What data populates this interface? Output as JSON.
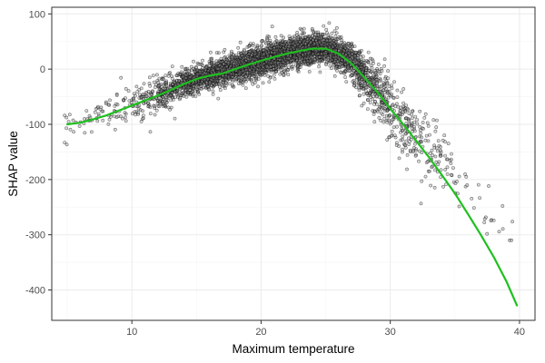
{
  "chart_data": {
    "type": "scatter",
    "title": "",
    "xlabel": "Maximum temperature",
    "ylabel": "SHAP value",
    "xlim": [
      3.8,
      41.2
    ],
    "ylim": [
      -455,
      112
    ],
    "x_ticks": [
      10,
      20,
      30,
      40
    ],
    "y_ticks": [
      100,
      0,
      -100,
      -200,
      -300,
      -400
    ],
    "x_tick_labels": [
      "10",
      "20",
      "30",
      "40"
    ],
    "y_tick_labels": [
      "100",
      "0",
      "-100",
      "-200",
      "-300",
      "-400"
    ],
    "grid": true,
    "legend": "none",
    "colors": {
      "points_stroke": "#000000",
      "points_fill": "#9a9a9a",
      "trend": "#1fbf1f",
      "panel_border": "#333333",
      "grid_major": "#ebebeb",
      "grid_minor": "#f5f5f5",
      "tick_label": "#4d4d4d"
    },
    "series": [
      {
        "type": "scatter",
        "note": "approximately 4000 observations; dense band follows the trend",
        "x_range": [
          4.8,
          39.8
        ],
        "y_range": [
          -310,
          90
        ],
        "band": [
          {
            "x": 5,
            "center": -100,
            "spread": 12,
            "n": 12
          },
          {
            "x": 7,
            "center": -86,
            "spread": 16,
            "n": 25
          },
          {
            "x": 9,
            "center": -70,
            "spread": 18,
            "n": 40
          },
          {
            "x": 11,
            "center": -55,
            "spread": 16,
            "n": 90
          },
          {
            "x": 13,
            "center": -35,
            "spread": 14,
            "n": 220
          },
          {
            "x": 15,
            "center": -18,
            "spread": 12,
            "n": 380
          },
          {
            "x": 17,
            "center": -5,
            "spread": 12,
            "n": 460
          },
          {
            "x": 19,
            "center": 10,
            "spread": 14,
            "n": 520
          },
          {
            "x": 21,
            "center": 22,
            "spread": 15,
            "n": 560
          },
          {
            "x": 23,
            "center": 33,
            "spread": 14,
            "n": 560
          },
          {
            "x": 25,
            "center": 38,
            "spread": 13,
            "n": 520
          },
          {
            "x": 27,
            "center": 15,
            "spread": 16,
            "n": 380
          },
          {
            "x": 29,
            "center": -40,
            "spread": 24,
            "n": 240
          },
          {
            "x": 31,
            "center": -105,
            "spread": 30,
            "n": 130
          },
          {
            "x": 33,
            "center": -150,
            "spread": 32,
            "n": 70
          },
          {
            "x": 35,
            "center": -195,
            "spread": 30,
            "n": 30
          },
          {
            "x": 37,
            "center": -250,
            "spread": 28,
            "n": 12
          },
          {
            "x": 39.5,
            "center": -290,
            "spread": 20,
            "n": 6
          }
        ]
      },
      {
        "type": "line",
        "points": [
          [
            5,
            -100
          ],
          [
            6,
            -97
          ],
          [
            7,
            -91
          ],
          [
            8,
            -84
          ],
          [
            9,
            -75
          ],
          [
            10,
            -66
          ],
          [
            11,
            -57
          ],
          [
            12,
            -48
          ],
          [
            13,
            -38
          ],
          [
            14,
            -27
          ],
          [
            15,
            -18
          ],
          [
            16,
            -12
          ],
          [
            17,
            -8
          ],
          [
            18,
            0
          ],
          [
            19,
            8
          ],
          [
            20,
            15
          ],
          [
            21,
            22
          ],
          [
            22,
            28
          ],
          [
            23,
            33
          ],
          [
            24,
            37
          ],
          [
            25,
            37
          ],
          [
            26,
            28
          ],
          [
            27,
            10
          ],
          [
            28,
            -15
          ],
          [
            29,
            -42
          ],
          [
            30,
            -72
          ],
          [
            31,
            -100
          ],
          [
            32,
            -130
          ],
          [
            33,
            -160
          ],
          [
            34,
            -192
          ],
          [
            35,
            -225
          ],
          [
            36,
            -262
          ],
          [
            37,
            -300
          ],
          [
            38,
            -340
          ],
          [
            39,
            -385
          ],
          [
            39.8,
            -428
          ]
        ]
      }
    ]
  }
}
